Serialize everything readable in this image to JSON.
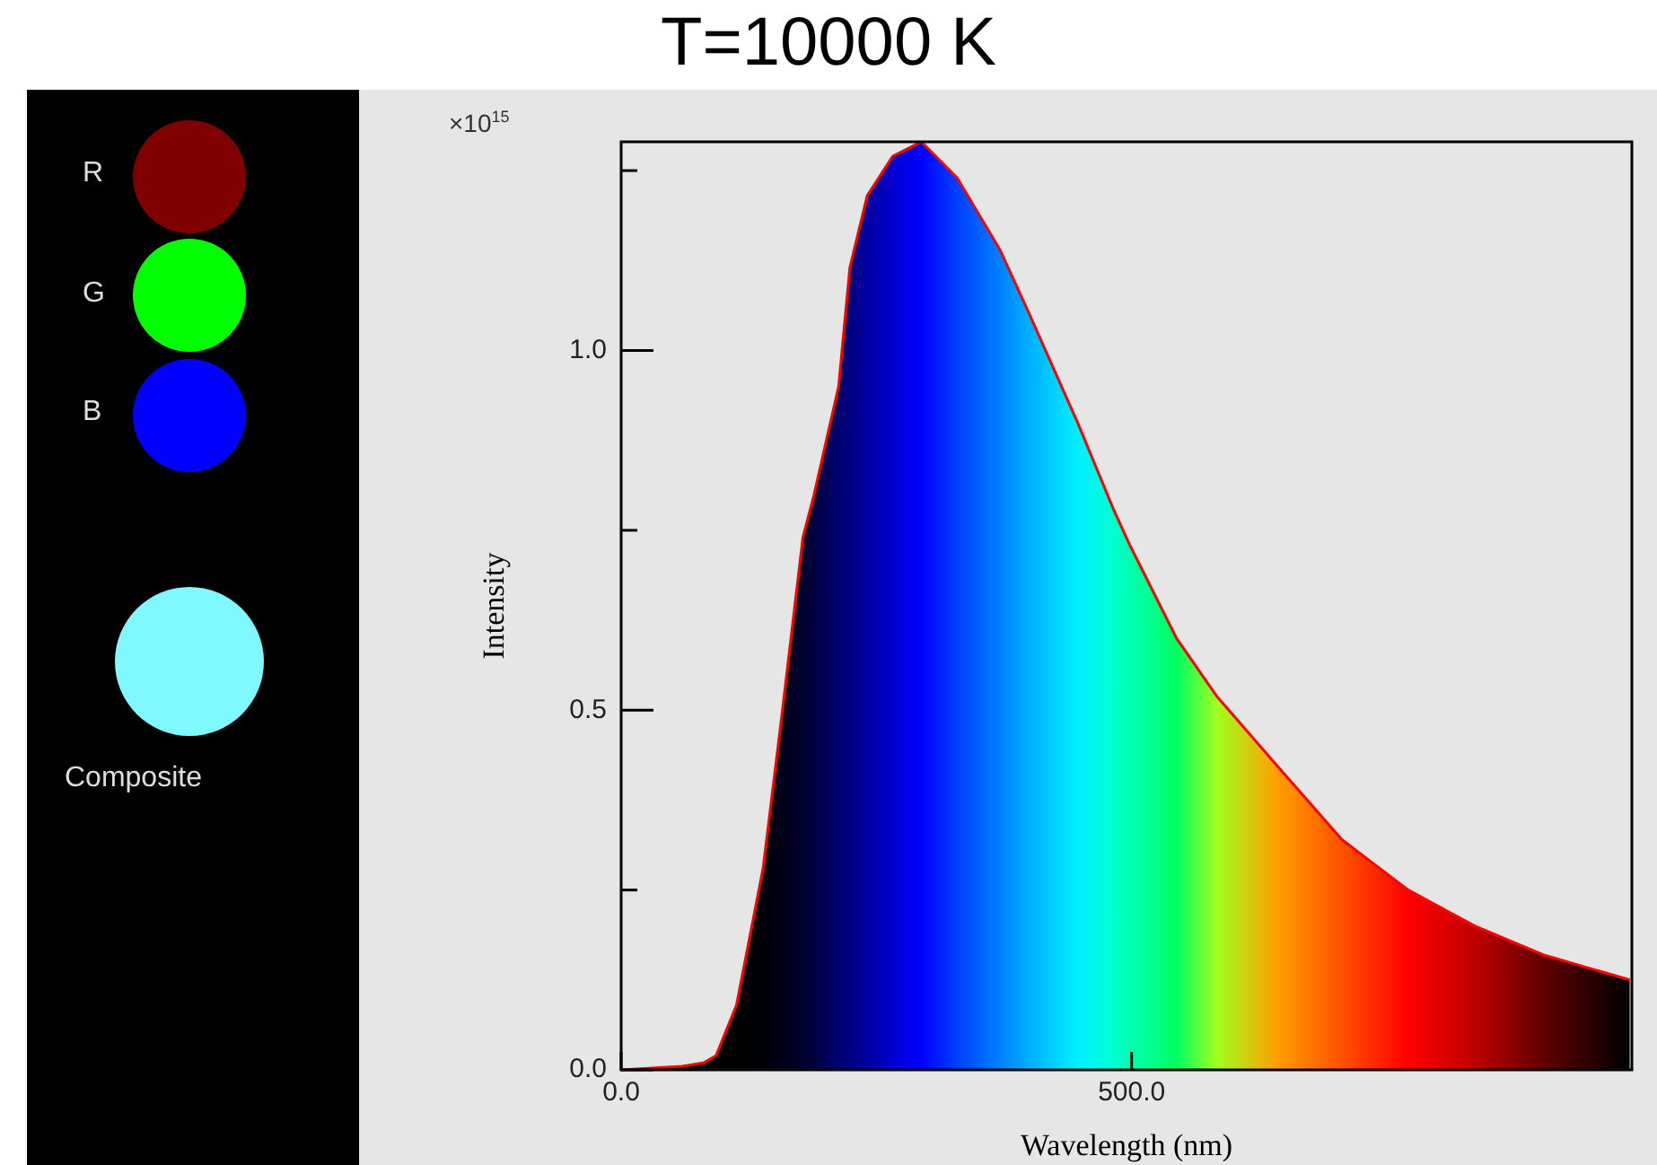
{
  "chart_data": {
    "type": "area",
    "title": "T=10000 K",
    "xlabel": "Wavelength (nm)",
    "ylabel": "Intensity",
    "annotations": [
      "×10$^{15}$",
      "R",
      "G",
      "B",
      "Composite"
    ],
    "x": [
      0,
      60,
      81,
      93,
      113,
      139,
      158,
      178,
      189,
      213,
      224,
      241,
      266,
      294,
      329,
      371,
      400,
      447,
      482,
      498,
      544,
      583,
      641,
      706,
      771,
      836,
      903,
      988
    ],
    "series": [
      {
        "color": "#ff0000",
        "colors": [
          "#000000",
          "#000000",
          "#000000",
          "#000000",
          "#000000",
          "#000008",
          "#000018",
          "#000030",
          "#000040",
          "#000070",
          "#000080",
          "#0000a0",
          "#0000d0",
          "#0000ff",
          "#0040ff",
          "#0080ff",
          "#00b0ff",
          "#00f0ff",
          "#00ffd0",
          "#00ffb0",
          "#00ff60",
          "#a0ff20",
          "#ffa000",
          "#ff5000",
          "#ff0000",
          "#c00000",
          "#600000",
          "#000000"
        ],
        "values": [
          0,
          0.005,
          0.01,
          0.02,
          0.09,
          0.28,
          0.5,
          0.74,
          0.8,
          0.95,
          1.115,
          1.215,
          1.27,
          1.29,
          1.24,
          1.14,
          1.05,
          0.9,
          0.78,
          0.73,
          0.6,
          0.52,
          0.425,
          0.32,
          0.25,
          0.2,
          0.16,
          0.125
        ]
      }
    ],
    "xlim": [
      0,
      990
    ],
    "xticks": [
      {
        "value": 0,
        "label": "0.0"
      },
      {
        "value": 500,
        "label": "500.0"
      }
    ],
    "ylim": [
      0,
      1.29
    ],
    "yticks": [
      {
        "value": 0,
        "label": "0.0"
      },
      {
        "value": 0.25,
        "label": null
      },
      {
        "value": 0.5,
        "label": "0.5"
      },
      {
        "value": 0.75,
        "label": null
      },
      {
        "value": 1,
        "label": "1.0"
      },
      {
        "value": 1.25,
        "label": null
      }
    ],
    "marker": "none"
  }
}
